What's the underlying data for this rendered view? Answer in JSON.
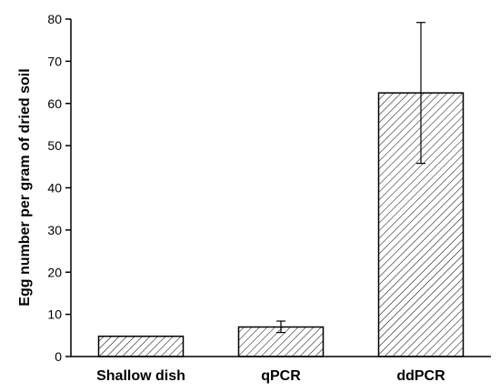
{
  "chart_data": {
    "type": "bar",
    "title": "",
    "xlabel": "",
    "ylabel": "Egg number per gram of dried soil",
    "categories": [
      "Shallow dish",
      "qPCR",
      "ddPCR"
    ],
    "values": [
      4.8,
      7.0,
      62.5
    ],
    "error_low": [
      4.8,
      5.7,
      45.8
    ],
    "error_high": [
      4.8,
      8.4,
      79.2
    ],
    "ylim": [
      0,
      80
    ],
    "yticks": [
      0,
      10,
      20,
      30,
      40,
      50,
      60,
      70,
      80
    ],
    "grid": false,
    "legend": "none",
    "bar_fill": "hatched",
    "colors": {
      "bar_stroke": "#000000",
      "hatch": "#000000",
      "background": "#ffffff"
    }
  }
}
